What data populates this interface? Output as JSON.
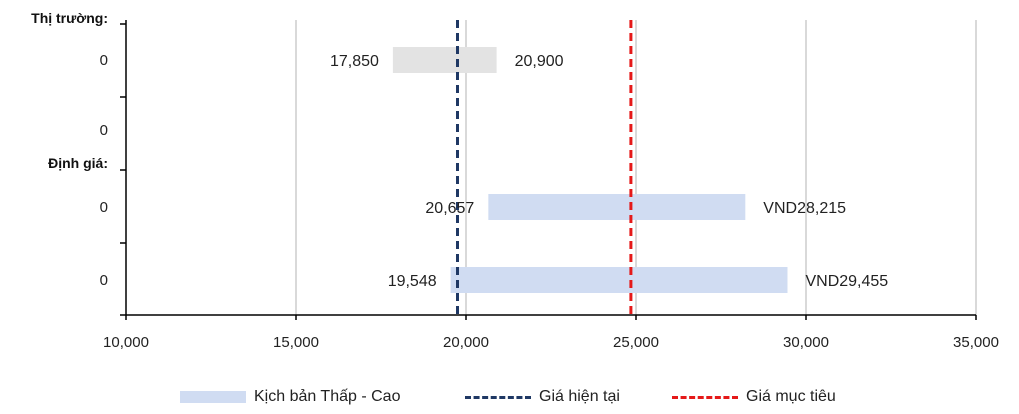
{
  "chart_data": {
    "type": "bar",
    "orientation": "horizontal-range",
    "xlim": [
      10000,
      35000
    ],
    "x_ticks": [
      "10,000",
      "15,000",
      "20,000",
      "25,000",
      "30,000",
      "35,000"
    ],
    "x_tick_values": [
      10000,
      15000,
      20000,
      25000,
      30000,
      35000
    ],
    "grid": true,
    "section_labels": [
      "Thị trường:",
      "Định giá:"
    ],
    "rows": [
      {
        "y_label": "0",
        "low": 17850,
        "high": 20900,
        "low_label": "17,850",
        "high_label": "20,900",
        "color": "#e3e3e3"
      },
      {
        "y_label": "0",
        "low": null,
        "high": null,
        "low_label": "",
        "high_label": "",
        "color": ""
      },
      {
        "y_label": "0",
        "low": 20657,
        "high": 28215,
        "low_label": "20,657",
        "high_label": "VND28,215",
        "color": "#d0dcf2"
      },
      {
        "y_label": "0",
        "low": 19548,
        "high": 29455,
        "low_label": "19,548",
        "high_label": "VND29,455",
        "color": "#d0dcf2"
      }
    ],
    "reference_lines": [
      {
        "name": "Giá hiện tại",
        "value": 19750,
        "color": "#1f3864",
        "style": "dashed"
      },
      {
        "name": "Giá mục tiêu",
        "value": 24850,
        "color": "#e51919",
        "style": "dashed"
      }
    ]
  },
  "legend": {
    "range_label": "Kịch bản Thấp - Cao",
    "current_label": "Giá hiện tại",
    "target_label": "Giá mục tiêu",
    "range_color": "#d0dcf2",
    "current_color": "#1f3864",
    "target_color": "#e51919"
  }
}
